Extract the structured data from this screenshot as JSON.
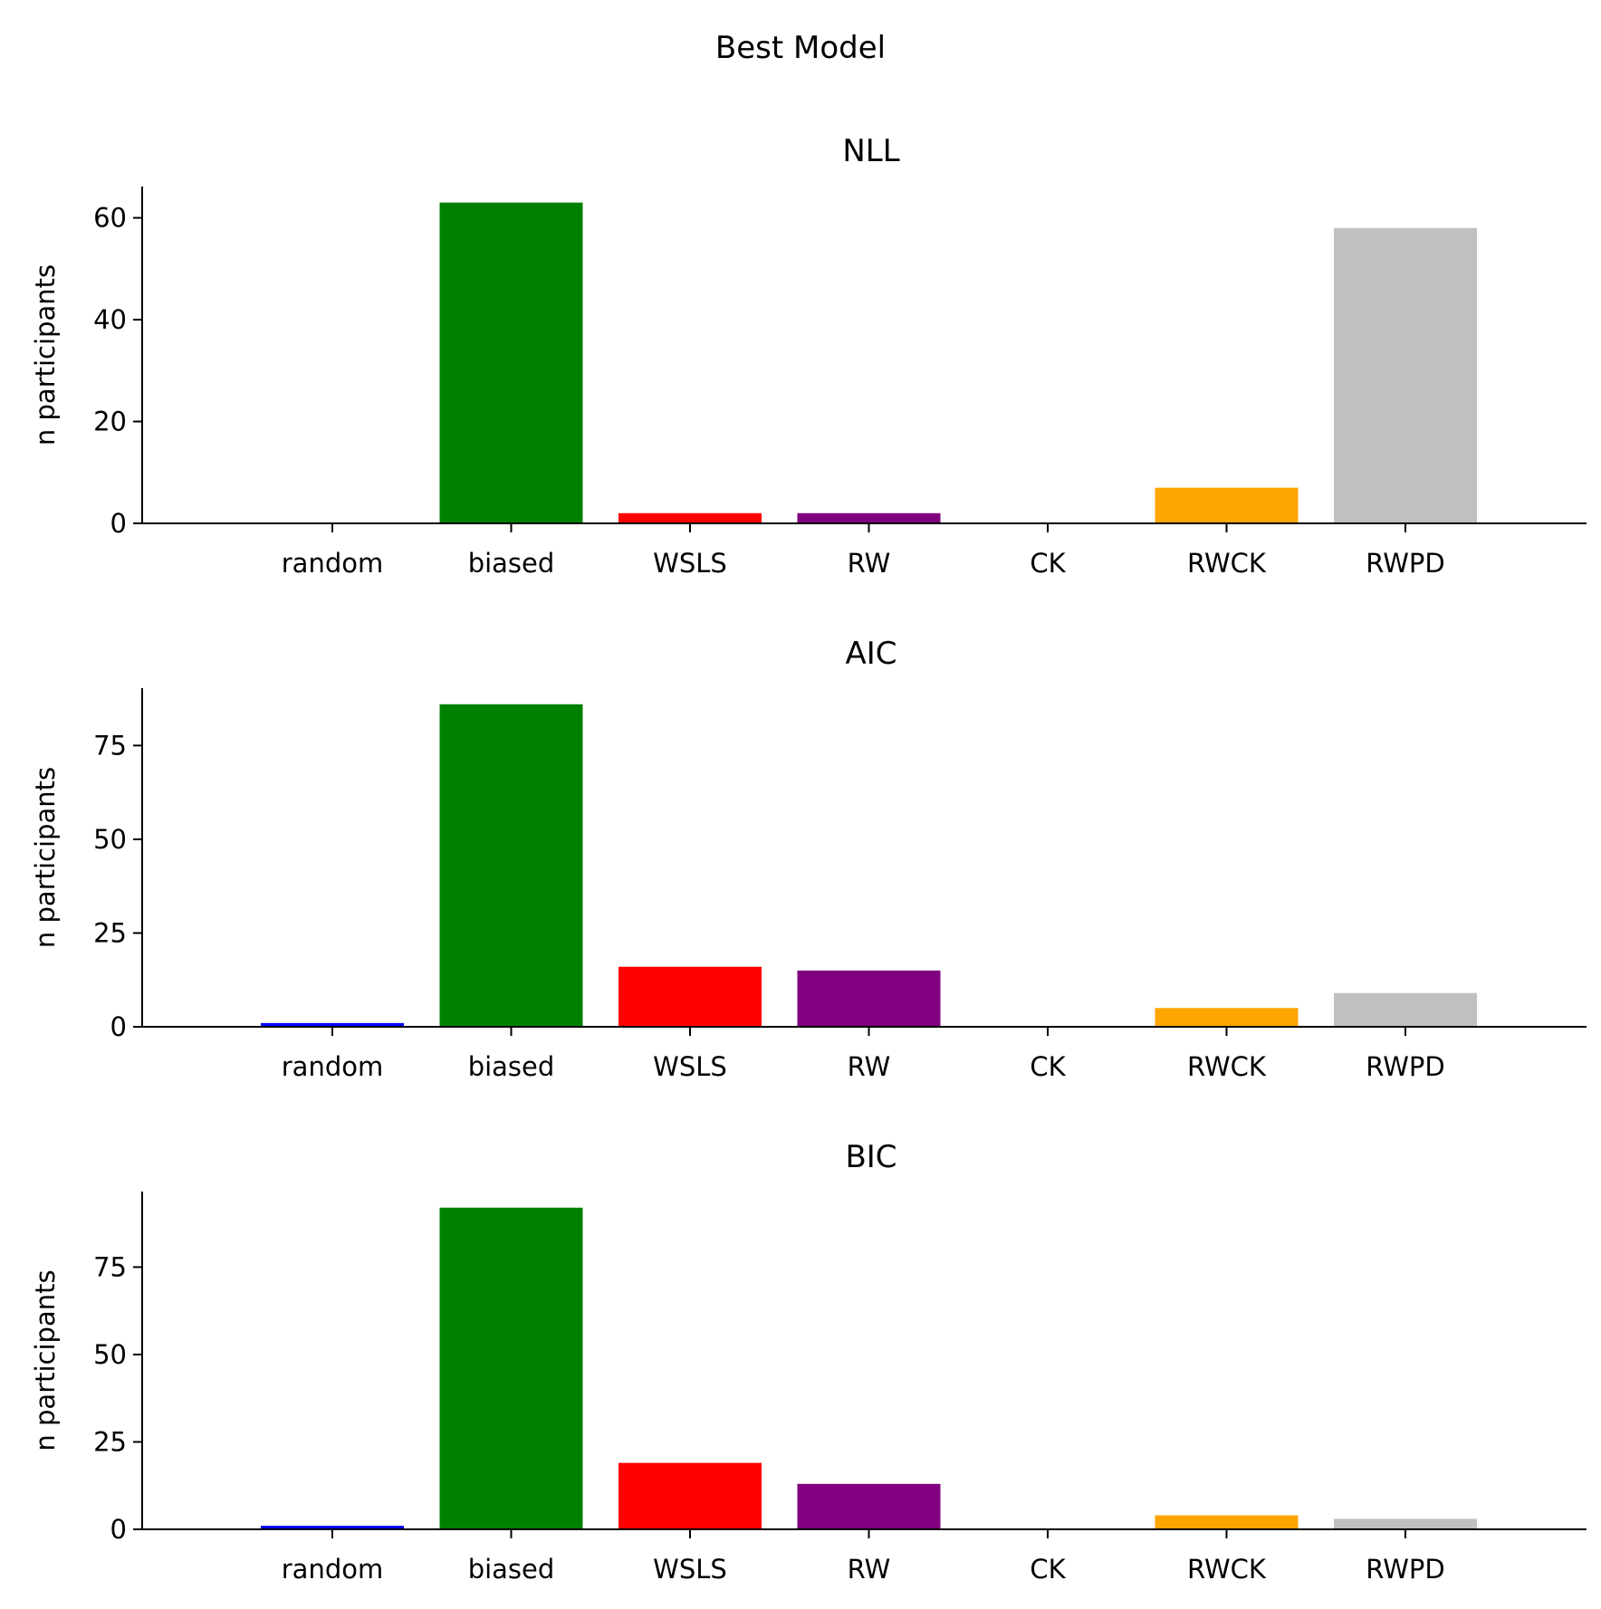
{
  "chart_data": {
    "type": "bar",
    "title": "Best Model",
    "categories": [
      "random",
      "biased",
      "WSLS",
      "RW",
      "CK",
      "RWCK",
      "RWPD"
    ],
    "colors": [
      "#0000ff",
      "#008000",
      "#ff0000",
      "#800080",
      "#000000",
      "#ffa500",
      "#c0c0c0"
    ],
    "panels": [
      {
        "title": "NLL",
        "ylabel": "n participants",
        "values": [
          0,
          63,
          2,
          2,
          0,
          7,
          58
        ],
        "yticks": [
          0,
          20,
          40,
          60
        ],
        "ylim": [
          0,
          66.15
        ]
      },
      {
        "title": "AIC",
        "ylabel": "n participants",
        "values": [
          1,
          86,
          16,
          15,
          0,
          5,
          9
        ],
        "yticks": [
          0,
          25,
          50,
          75
        ],
        "ylim": [
          0,
          90.3
        ]
      },
      {
        "title": "BIC",
        "ylabel": "n participants",
        "values": [
          1,
          92,
          19,
          13,
          0,
          4,
          3
        ],
        "yticks": [
          0,
          25,
          50,
          75
        ],
        "ylim": [
          0,
          96.6
        ]
      }
    ]
  }
}
